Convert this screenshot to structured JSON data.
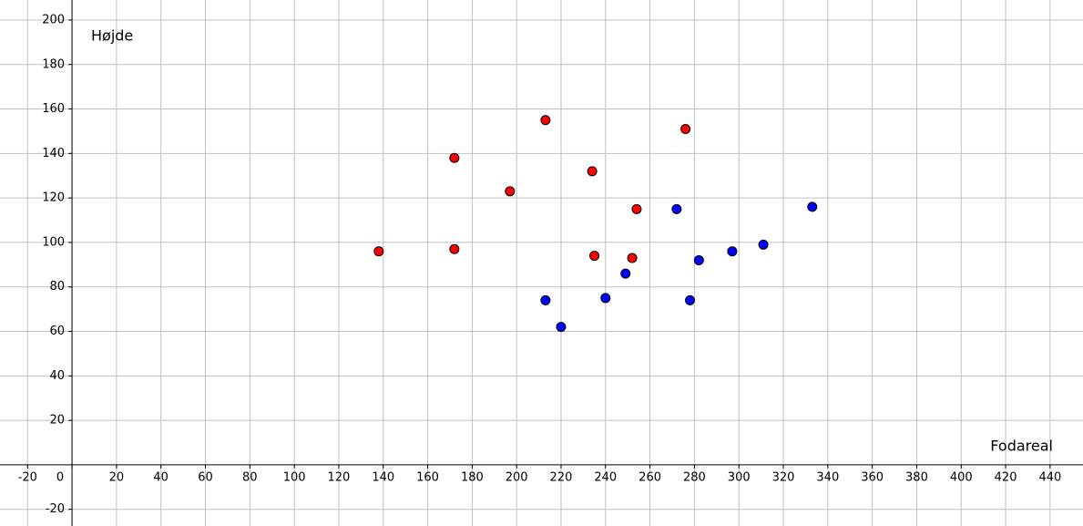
{
  "chart_data": {
    "type": "scatter",
    "x_label": "Fodareal",
    "y_label": "Højde",
    "xlim": [
      -32.4,
      454.8
    ],
    "ylim": [
      -27.5,
      209
    ],
    "xticks": [
      -20,
      0,
      20,
      40,
      60,
      80,
      100,
      120,
      140,
      160,
      180,
      200,
      220,
      240,
      260,
      280,
      300,
      320,
      340,
      360,
      380,
      400,
      420,
      440
    ],
    "yticks": [
      -20,
      20,
      40,
      60,
      80,
      100,
      120,
      140,
      160,
      180,
      200
    ],
    "grid": true,
    "series": [
      {
        "color": "#ff0000",
        "x": [
          138,
          172,
          172,
          197,
          213,
          234,
          235,
          252,
          254,
          276
        ],
        "values": [
          96,
          97,
          138,
          123,
          155,
          132,
          94,
          93,
          115,
          151
        ]
      },
      {
        "color": "#0000ff",
        "x": [
          213,
          220,
          240,
          249,
          272,
          278,
          282,
          297,
          311,
          333
        ],
        "values": [
          74,
          62,
          75,
          86,
          115,
          74,
          92,
          96,
          99,
          116
        ]
      }
    ]
  }
}
